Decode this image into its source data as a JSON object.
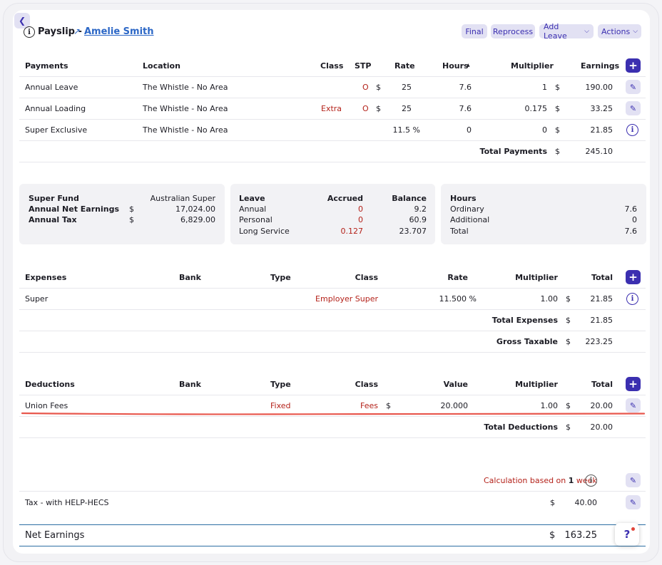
{
  "header": {
    "title": "Payslip -",
    "employee_name": "Amelie Smith",
    "buttons": {
      "final": "Final",
      "reprocess": "Reprocess",
      "add_leave": "Add Leave",
      "actions": "Actions"
    }
  },
  "payments": {
    "columns": [
      "Payments",
      "Location",
      "Class",
      "STP",
      "Rate",
      "Hours",
      "Multiplier",
      "Earnings"
    ],
    "rows": [
      {
        "name": "Annual Leave",
        "location": "The Whistle - No Area",
        "class": "",
        "stp": "O",
        "rate_cur": "$",
        "rate": "25",
        "hours": "7.6",
        "multiplier": "1",
        "cur": "$",
        "earnings": "190.00"
      },
      {
        "name": "Annual Loading",
        "location": "The Whistle - No Area",
        "class": "Extra",
        "stp": "O",
        "rate_cur": "$",
        "rate": "25",
        "hours": "7.6",
        "multiplier": "0.175",
        "cur": "$",
        "earnings": "33.25"
      },
      {
        "name": "Super Exclusive",
        "location": "The Whistle - No Area",
        "class": "",
        "stp": "",
        "rate_cur": "",
        "rate": "11.5 %",
        "hours": "0",
        "multiplier": "0",
        "cur": "$",
        "earnings": "21.85"
      }
    ],
    "total_label": "Total Payments",
    "total_cur": "$",
    "total": "245.10"
  },
  "super_panel": {
    "rows": [
      {
        "label": "Super Fund",
        "cur": "",
        "value": "Australian Super"
      },
      {
        "label": "Annual Net Earnings",
        "cur": "$",
        "value": "17,024.00"
      },
      {
        "label": "Annual Tax",
        "cur": "$",
        "value": "6,829.00"
      }
    ]
  },
  "leave_panel": {
    "headers": {
      "leave": "Leave",
      "accrued": "Accrued",
      "balance": "Balance"
    },
    "rows": [
      {
        "type": "Annual",
        "accrued": "0",
        "balance": "9.2"
      },
      {
        "type": "Personal",
        "accrued": "0",
        "balance": "60.9"
      },
      {
        "type": "Long Service",
        "accrued": "0.127",
        "balance": "23.707"
      }
    ]
  },
  "hours_panel": {
    "header": "Hours",
    "rows": [
      {
        "label": "Ordinary",
        "value": "7.6"
      },
      {
        "label": "Additional",
        "value": "0"
      },
      {
        "label": "Total",
        "value": "7.6"
      }
    ]
  },
  "expenses": {
    "columns": [
      "Expenses",
      "Bank",
      "Type",
      "Class",
      "Rate",
      "Multiplier",
      "Total"
    ],
    "rows": [
      {
        "name": "Super",
        "bank": "",
        "type": "",
        "class": "Employer Super",
        "rate": "11.500 %",
        "multiplier": "1.00",
        "cur": "$",
        "total": "21.85"
      }
    ],
    "total_label": "Total Expenses",
    "total_cur": "$",
    "total": "21.85",
    "gross_label": "Gross Taxable",
    "gross_cur": "$",
    "gross": "223.25"
  },
  "deductions": {
    "columns": [
      "Deductions",
      "Bank",
      "Type",
      "Class",
      "Value",
      "Multiplier",
      "Total"
    ],
    "rows": [
      {
        "name": "Union Fees",
        "bank": "",
        "type": "Fixed",
        "class": "Fees",
        "value_cur": "$",
        "value": "20.000",
        "multiplier": "1.00",
        "cur": "$",
        "total": "20.00"
      }
    ],
    "total_label": "Total Deductions",
    "total_cur": "$",
    "total": "20.00"
  },
  "tax": {
    "calc_prefix": "Calculation based on",
    "calc_count": "1",
    "calc_unit": "week",
    "label": "Tax - with HELP-HECS",
    "cur": "$",
    "value": "40.00"
  },
  "net": {
    "label": "Net Earnings",
    "cur": "$",
    "value": "163.25"
  },
  "help": {
    "label": "?"
  },
  "colors": {
    "accent": "#3b2fb0",
    "accent_light": "#e2e1f3",
    "negative": "#b4221a",
    "divider": "#2d6fa3",
    "underline": "#e8574d"
  },
  "icons": {
    "back": "chevron-left-icon",
    "info": "info-icon",
    "link": "external-link-icon",
    "add": "plus-icon",
    "edit": "pencil-icon",
    "dropdown": "chevron-down-icon",
    "help": "help-icon"
  }
}
